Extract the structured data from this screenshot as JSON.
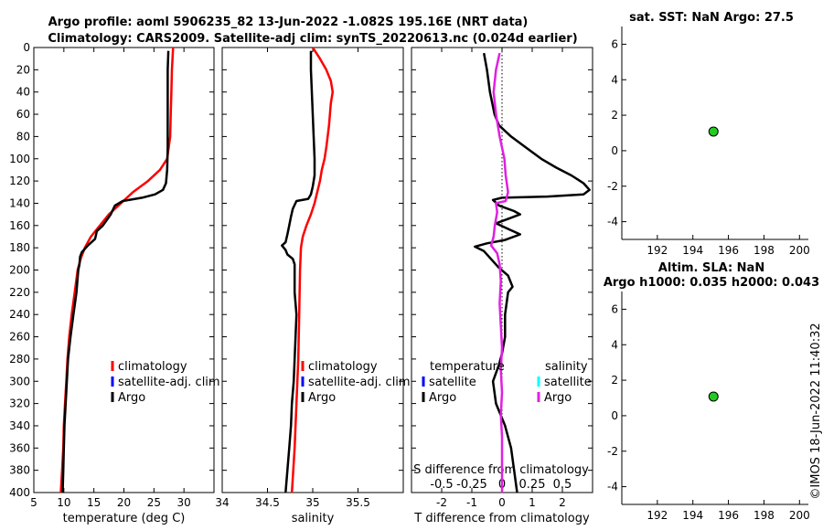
{
  "title_lines": [
    "Argo profile: aoml 5906235_82 13-Jun-2022 -1.082S 195.16E (NRT data)",
    "Climatology: CARS2009. Satellite-adj clim: synTS_20220613.nc (0.024d earlier)"
  ],
  "colors": {
    "climatology": "#ff0000",
    "satellite_adj": "#0000ff",
    "argo": "#000000",
    "salinity_argo": "#e020e0",
    "salinity_satellite": "#00ffff",
    "marker": "#22cc22"
  },
  "footer_stamp": "©IMOS 18-Jun-2022 11:40:32",
  "chart_data": [
    {
      "id": "temperature",
      "type": "line",
      "xlabel": "temperature (deg C)",
      "ylabel": "",
      "xlim": [
        5,
        35
      ],
      "ylim": [
        0,
        400
      ],
      "xticks": [
        5,
        10,
        15,
        20,
        25,
        30
      ],
      "yticks": [
        0,
        20,
        40,
        60,
        80,
        100,
        120,
        140,
        160,
        180,
        200,
        220,
        240,
        260,
        280,
        300,
        320,
        340,
        360,
        380,
        400
      ],
      "legend": {
        "position": "lower-right",
        "entries": [
          "climatology",
          "satellite-adj. clim",
          "Argo"
        ]
      },
      "series": [
        {
          "name": "climatology",
          "color": "#ff0000",
          "points": [
            [
              28.2,
              0
            ],
            [
              28.0,
              20
            ],
            [
              27.9,
              40
            ],
            [
              27.8,
              60
            ],
            [
              27.7,
              80
            ],
            [
              27.2,
              100
            ],
            [
              26.0,
              110
            ],
            [
              24.0,
              120
            ],
            [
              21.5,
              130
            ],
            [
              19.5,
              140
            ],
            [
              17.5,
              150
            ],
            [
              16.0,
              160
            ],
            [
              14.5,
              170
            ],
            [
              13.5,
              180
            ],
            [
              12.8,
              190
            ],
            [
              12.3,
              200
            ],
            [
              11.8,
              220
            ],
            [
              11.3,
              240
            ],
            [
              10.9,
              260
            ],
            [
              10.6,
              280
            ],
            [
              10.4,
              300
            ],
            [
              10.2,
              320
            ],
            [
              10.0,
              340
            ],
            [
              9.9,
              360
            ],
            [
              9.7,
              380
            ],
            [
              9.5,
              400
            ]
          ]
        },
        {
          "name": "Argo",
          "color": "#000000",
          "points": [
            [
              27.4,
              3
            ],
            [
              27.3,
              20
            ],
            [
              27.3,
              60
            ],
            [
              27.3,
              90
            ],
            [
              27.2,
              110
            ],
            [
              27.0,
              122
            ],
            [
              26.5,
              128
            ],
            [
              25.2,
              132
            ],
            [
              23.0,
              135
            ],
            [
              19.8,
              138
            ],
            [
              18.5,
              142
            ],
            [
              17.8,
              150
            ],
            [
              16.5,
              160
            ],
            [
              15.5,
              165
            ],
            [
              15.2,
              172
            ],
            [
              14.0,
              178
            ],
            [
              13.0,
              184
            ],
            [
              12.7,
              188
            ],
            [
              12.6,
              195
            ],
            [
              12.4,
              200
            ],
            [
              12.1,
              220
            ],
            [
              11.6,
              240
            ],
            [
              11.1,
              260
            ],
            [
              10.7,
              280
            ],
            [
              10.5,
              300
            ],
            [
              10.3,
              320
            ],
            [
              10.1,
              340
            ],
            [
              10.0,
              360
            ],
            [
              9.9,
              380
            ],
            [
              9.8,
              400
            ]
          ]
        }
      ]
    },
    {
      "id": "salinity",
      "type": "line",
      "xlabel": "salinity",
      "ylabel": "",
      "xlim": [
        34,
        36
      ],
      "ylim": [
        0,
        400
      ],
      "xticks": [
        34,
        34.5,
        35,
        35.5
      ],
      "yticks": [
        0,
        20,
        40,
        60,
        80,
        100,
        120,
        140,
        160,
        180,
        200,
        220,
        240,
        260,
        280,
        300,
        320,
        340,
        360,
        380,
        400
      ],
      "legend": {
        "position": "lower-right",
        "entries": [
          "climatology",
          "satellite-adj. clim",
          "Argo"
        ]
      },
      "series": [
        {
          "name": "climatology",
          "color": "#ff0000",
          "points": [
            [
              35.0,
              0
            ],
            [
              35.08,
              10
            ],
            [
              35.15,
              20
            ],
            [
              35.2,
              30
            ],
            [
              35.22,
              40
            ],
            [
              35.2,
              50
            ],
            [
              35.18,
              70
            ],
            [
              35.15,
              90
            ],
            [
              35.13,
              100
            ],
            [
              35.1,
              110
            ],
            [
              35.08,
              120
            ],
            [
              35.05,
              130
            ],
            [
              35.02,
              140
            ],
            [
              34.98,
              150
            ],
            [
              34.93,
              160
            ],
            [
              34.89,
              170
            ],
            [
              34.87,
              180
            ],
            [
              34.86,
              200
            ],
            [
              34.85,
              240
            ],
            [
              34.84,
              280
            ],
            [
              34.82,
              320
            ],
            [
              34.8,
              360
            ],
            [
              34.77,
              400
            ]
          ]
        },
        {
          "name": "Argo",
          "color": "#000000",
          "points": [
            [
              34.98,
              3
            ],
            [
              34.98,
              20
            ],
            [
              34.99,
              40
            ],
            [
              35.0,
              60
            ],
            [
              35.01,
              80
            ],
            [
              35.02,
              100
            ],
            [
              35.02,
              115
            ],
            [
              35.0,
              125
            ],
            [
              34.98,
              132
            ],
            [
              34.95,
              136
            ],
            [
              34.82,
              138
            ],
            [
              34.78,
              145
            ],
            [
              34.76,
              152
            ],
            [
              34.74,
              160
            ],
            [
              34.72,
              168
            ],
            [
              34.7,
              175
            ],
            [
              34.66,
              178
            ],
            [
              34.7,
              182
            ],
            [
              34.72,
              186
            ],
            [
              34.78,
              190
            ],
            [
              34.8,
              195
            ],
            [
              34.8,
              200
            ],
            [
              34.8,
              220
            ],
            [
              34.82,
              240
            ],
            [
              34.81,
              260
            ],
            [
              34.8,
              280
            ],
            [
              34.79,
              300
            ],
            [
              34.77,
              320
            ],
            [
              34.76,
              340
            ],
            [
              34.74,
              360
            ],
            [
              34.72,
              380
            ],
            [
              34.7,
              400
            ]
          ]
        }
      ]
    },
    {
      "id": "difference",
      "type": "line",
      "xlabel": "T difference from climatology",
      "top_label": "S difference from climatology",
      "ylabel": "",
      "xlim": [
        -3,
        3
      ],
      "ylim": [
        0,
        400
      ],
      "xticks": [
        -2,
        -1,
        0,
        1,
        2
      ],
      "xtick_labels": [
        "-2",
        "-1",
        "0",
        "1",
        "2"
      ],
      "top_ticks": [
        "-0.5",
        "-0.25",
        "0",
        "0.25",
        "0.5"
      ],
      "yticks": [
        0,
        20,
        40,
        60,
        80,
        100,
        120,
        140,
        160,
        180,
        200,
        220,
        240,
        260,
        280,
        300,
        320,
        340,
        360,
        380,
        400
      ],
      "legend": {
        "position": "lower-right",
        "temperature_header": "temperature",
        "salinity_header": "salinity",
        "temperature_entries": [
          "satellite",
          "Argo"
        ],
        "salinity_entries": [
          "satellite",
          "Argo"
        ]
      },
      "series": [
        {
          "name": "T difference (Argo)",
          "color": "#000000",
          "points": [
            [
              -0.6,
              5
            ],
            [
              -0.5,
              20
            ],
            [
              -0.4,
              40
            ],
            [
              -0.25,
              60
            ],
            [
              -0.1,
              70
            ],
            [
              0.3,
              80
            ],
            [
              0.8,
              90
            ],
            [
              1.3,
              100
            ],
            [
              1.8,
              108
            ],
            [
              2.3,
              115
            ],
            [
              2.7,
              122
            ],
            [
              2.9,
              128
            ],
            [
              2.7,
              132
            ],
            [
              1.5,
              134
            ],
            [
              0.0,
              135
            ],
            [
              -0.3,
              137
            ],
            [
              -0.1,
              142
            ],
            [
              0.4,
              147
            ],
            [
              0.6,
              150
            ],
            [
              0.3,
              153
            ],
            [
              -0.2,
              158
            ],
            [
              0.2,
              163
            ],
            [
              0.6,
              168
            ],
            [
              0.1,
              173
            ],
            [
              -0.5,
              176
            ],
            [
              -0.9,
              179
            ],
            [
              -0.6,
              183
            ],
            [
              -0.3,
              192
            ],
            [
              -0.1,
              198
            ],
            [
              0.2,
              205
            ],
            [
              0.35,
              215
            ],
            [
              0.2,
              220
            ],
            [
              0.1,
              240
            ],
            [
              0.1,
              260
            ],
            [
              0.0,
              275
            ],
            [
              -0.1,
              285
            ],
            [
              -0.3,
              300
            ],
            [
              -0.2,
              320
            ],
            [
              0.1,
              340
            ],
            [
              0.3,
              360
            ],
            [
              0.4,
              380
            ],
            [
              0.5,
              400
            ]
          ]
        },
        {
          "name": "S difference (Argo)",
          "color": "#e020e0",
          "points": [
            [
              -0.02,
              5
            ],
            [
              -0.05,
              20
            ],
            [
              -0.07,
              40
            ],
            [
              -0.05,
              60
            ],
            [
              -0.02,
              80
            ],
            [
              0.02,
              100
            ],
            [
              0.03,
              115
            ],
            [
              0.05,
              130
            ],
            [
              0.03,
              138
            ],
            [
              -0.05,
              140
            ],
            [
              -0.04,
              148
            ],
            [
              -0.06,
              160
            ],
            [
              -0.07,
              170
            ],
            [
              -0.09,
              178
            ],
            [
              -0.04,
              185
            ],
            [
              -0.02,
              195
            ],
            [
              -0.01,
              210
            ],
            [
              -0.02,
              230
            ],
            [
              -0.01,
              250
            ],
            [
              0.0,
              270
            ],
            [
              -0.01,
              290
            ],
            [
              0.0,
              310
            ],
            [
              -0.01,
              330
            ],
            [
              0.0,
              350
            ],
            [
              0.0,
              370
            ],
            [
              0.0,
              390
            ],
            [
              0.0,
              400
            ]
          ]
        }
      ]
    },
    {
      "id": "sst_location",
      "type": "scatter",
      "title": "sat. SST: NaN Argo: 27.5",
      "xlim": [
        190,
        200.5
      ],
      "ylim": [
        -5,
        7
      ],
      "xticks": [
        192,
        194,
        196,
        198,
        200
      ],
      "yticks": [
        -4,
        -2,
        0,
        2,
        4,
        6
      ],
      "points": [
        {
          "x": 195.16,
          "y": 1.08
        }
      ]
    },
    {
      "id": "sla_location",
      "type": "scatter",
      "title_lines": [
        "Altim. SLA: NaN",
        "Argo h1000: 0.035 h2000: 0.043"
      ],
      "xlim": [
        190,
        200.5
      ],
      "ylim": [
        -5,
        7
      ],
      "xticks": [
        192,
        194,
        196,
        198,
        200
      ],
      "yticks": [
        -4,
        -2,
        0,
        2,
        4,
        6
      ],
      "points": [
        {
          "x": 195.16,
          "y": 1.08
        }
      ]
    }
  ]
}
